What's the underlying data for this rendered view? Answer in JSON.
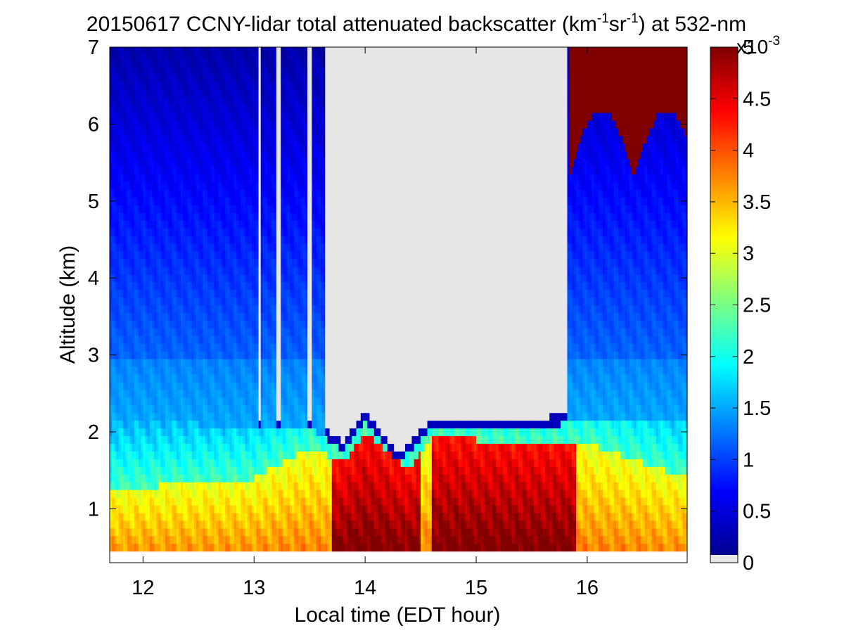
{
  "chart_data": {
    "type": "heatmap",
    "title": {
      "prefix": "20150617 CCNY-lidar total attenuated backscatter (km",
      "sup1": "-1",
      "mid": "sr",
      "sup2": "-1",
      "suffix": ") at 532-nm"
    },
    "xlabel": "Local time (EDT hour)",
    "ylabel": "Altitude (km)",
    "xlim": [
      11.7,
      16.9
    ],
    "ylim": [
      0.3,
      7
    ],
    "xticks": [
      12,
      13,
      14,
      15,
      16
    ],
    "yticks": [
      1,
      2,
      3,
      4,
      5,
      6,
      7
    ],
    "data_start_altitude": 0.45,
    "colorbar": {
      "range": [
        0,
        5
      ],
      "ticks": [
        "0",
        "0.5",
        "1",
        "1.5",
        "2",
        "2.5",
        "3",
        "3.5",
        "4",
        "4.5",
        "5"
      ],
      "exponent_base": "x10",
      "exponent_power": "-3",
      "colormap": "jet",
      "zero_color": "#e6e6e6"
    },
    "grid": false,
    "clear_air_columns": [
      [
        13.03,
        13.05
      ],
      [
        13.2,
        13.23
      ],
      [
        13.48,
        13.52
      ],
      [
        13.63,
        15.82
      ]
    ],
    "profiles": [
      {
        "x": 11.7,
        "pbl_top": 2.1
      },
      {
        "x": 12.0,
        "pbl_top": 2.15
      },
      {
        "x": 12.5,
        "pbl_top": 2.1
      },
      {
        "x": 13.0,
        "pbl_top": 2.05
      },
      {
        "x": 13.5,
        "pbl_top": 2.05
      },
      {
        "x": 13.8,
        "pbl_top": 1.75
      },
      {
        "x": 14.0,
        "pbl_top": 2.15
      },
      {
        "x": 14.3,
        "pbl_top": 1.6
      },
      {
        "x": 14.6,
        "pbl_top": 2.05
      },
      {
        "x": 15.0,
        "pbl_top": 2.0
      },
      {
        "x": 15.5,
        "pbl_top": 2.05
      },
      {
        "x": 16.0,
        "pbl_top": 2.15
      },
      {
        "x": 16.5,
        "pbl_top": 2.15
      },
      {
        "x": 16.9,
        "pbl_top": 2.1
      }
    ],
    "aerosol_layer_top": [
      {
        "x": 11.7,
        "z": 1.25
      },
      {
        "x": 13.0,
        "z": 1.4
      },
      {
        "x": 13.5,
        "z": 1.8
      },
      {
        "x": 13.8,
        "z": 1.6
      },
      {
        "x": 14.0,
        "z": 2.0
      },
      {
        "x": 14.4,
        "z": 1.5
      },
      {
        "x": 14.6,
        "z": 1.95
      },
      {
        "x": 15.0,
        "z": 1.9
      },
      {
        "x": 15.5,
        "z": 1.85
      },
      {
        "x": 16.0,
        "z": 1.85
      },
      {
        "x": 16.5,
        "z": 1.6
      },
      {
        "x": 16.9,
        "z": 1.4
      }
    ],
    "cirrus_cloud": {
      "x_start": 15.83,
      "x_end": 16.9,
      "z_bottom": 5.3,
      "z_top": 7
    }
  }
}
